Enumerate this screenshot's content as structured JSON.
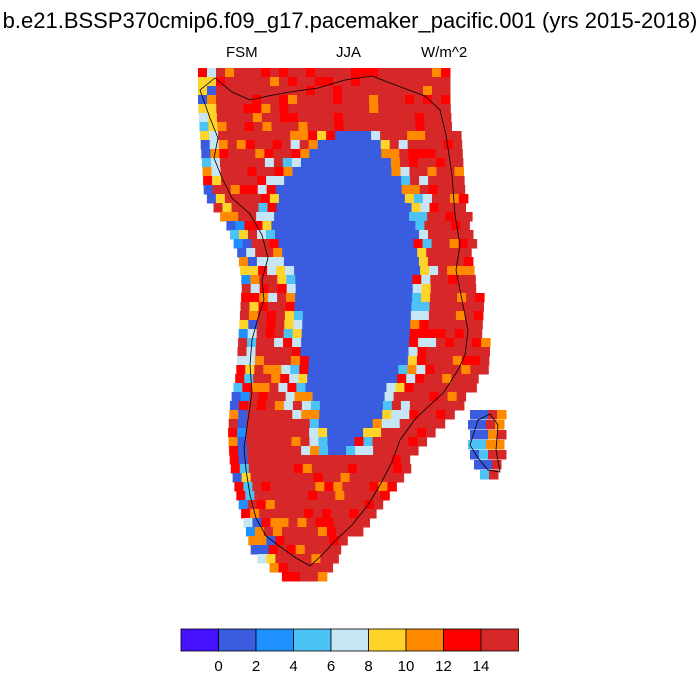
{
  "title": "b.e21.BSSP370cmip6.f09_g17.pacemaker_pacific.001 (yrs 2015-2018)",
  "subtitle_left": "FSM",
  "subtitle_center": "JJA",
  "subtitle_right": "W/m^2",
  "region": "Greenland",
  "colors": {
    "bins": [
      "#4611ff",
      "#3a5de0",
      "#1e90ff",
      "#4dc3f5",
      "#c6e6f6",
      "#ffd42a",
      "#ff8a00",
      "#ff0000",
      "#d62828"
    ],
    "interior": "#3a5de0",
    "coast_line": "#000000"
  },
  "colorbar": {
    "tick_labels": [
      "0",
      "2",
      "4",
      "6",
      "8",
      "10",
      "12",
      "14"
    ],
    "min_value": 0,
    "max_value": 14,
    "interval": 2
  }
}
